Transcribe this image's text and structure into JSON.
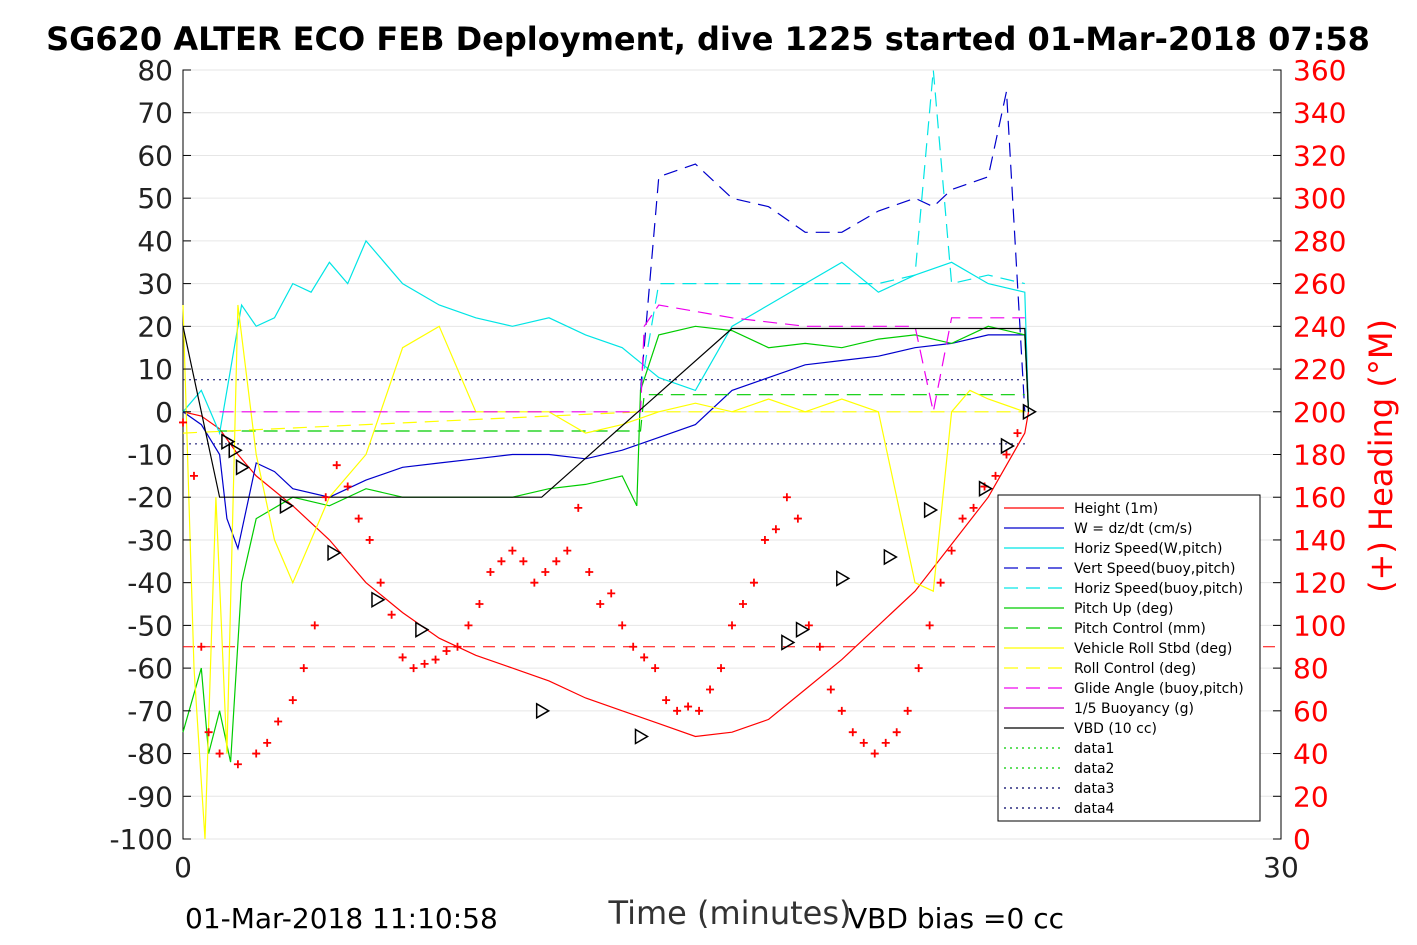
{
  "chart_data": {
    "type": "line",
    "title": "SG620 ALTER ECO FEB Deployment, dive 1225 started 01-Mar-2018 07:58",
    "xlabel": "Time (minutes)",
    "ylabel_right": "(+) Heading (°M)",
    "xlim": [
      0,
      30
    ],
    "ylim_left": [
      -100,
      80
    ],
    "ylim_right": [
      0,
      360
    ],
    "x_ticks": [
      "0",
      "30"
    ],
    "y_left_ticks": [
      "-100",
      "-90",
      "-80",
      "-70",
      "-60",
      "-50",
      "-40",
      "-30",
      "-20",
      "-10",
      "0",
      "10",
      "20",
      "30",
      "40",
      "50",
      "60",
      "70",
      "80"
    ],
    "y_right_ticks": [
      "0",
      "20",
      "40",
      "60",
      "80",
      "100",
      "120",
      "140",
      "160",
      "180",
      "200",
      "220",
      "240",
      "260",
      "280",
      "300",
      "320",
      "340",
      "360"
    ],
    "footer_left": "01-Mar-2018 11:10:58",
    "footer_right": "VBD bias =0 cc",
    "colors": {
      "height": "#ff0000",
      "w": "#0000cc",
      "horiz": "#00e5e5",
      "pitch": "#00cc00",
      "roll": "#ffff00",
      "glide": "#ee00ee",
      "buoy": "#cc00cc",
      "vbd": "#000000",
      "heading": "#ff0000",
      "right_axis": "#ff0000"
    },
    "legend_position": "lower-right",
    "legend": [
      {
        "label": "Height (1m)",
        "color": "#ff0000",
        "style": "solid"
      },
      {
        "label": "W = dz/dt (cm/s)",
        "color": "#0000cc",
        "style": "solid"
      },
      {
        "label": "Horiz Speed(W,pitch)",
        "color": "#00e5e5",
        "style": "solid"
      },
      {
        "label": "Vert Speed(buoy,pitch)",
        "color": "#0000cc",
        "style": "dashed"
      },
      {
        "label": "Horiz Speed(buoy,pitch)",
        "color": "#00e5e5",
        "style": "dashed"
      },
      {
        "label": "Pitch Up (deg)",
        "color": "#00cc00",
        "style": "solid"
      },
      {
        "label": "Pitch Control (mm)",
        "color": "#00cc00",
        "style": "dashed"
      },
      {
        "label": "Vehicle Roll Stbd (deg)",
        "color": "#ffff00",
        "style": "solid"
      },
      {
        "label": "Roll Control (deg)",
        "color": "#ffff00",
        "style": "dashed"
      },
      {
        "label": "Glide Angle (buoy,pitch)",
        "color": "#ee00ee",
        "style": "dashed"
      },
      {
        "label": "1/5 Buoyancy (g)",
        "color": "#cc00cc",
        "style": "solid"
      },
      {
        "label": "VBD (10 cc)",
        "color": "#000000",
        "style": "solid"
      },
      {
        "label": "data1",
        "color": "#00cc00",
        "style": "dotted"
      },
      {
        "label": "data2",
        "color": "#00cc00",
        "style": "dotted"
      },
      {
        "label": "data3",
        "color": "#000066",
        "style": "dotted"
      },
      {
        "label": "data4",
        "color": "#000066",
        "style": "dotted"
      }
    ],
    "series": [
      {
        "name": "Height (1m)",
        "x": [
          0,
          0.5,
          1,
          1.5,
          2,
          3,
          4,
          5,
          6,
          7,
          8,
          9,
          10,
          11,
          12,
          13,
          14,
          15,
          16,
          17,
          18,
          19,
          20,
          21,
          22,
          23,
          23.1
        ],
        "y": [
          0,
          -1,
          -4,
          -10,
          -15,
          -22,
          -30,
          -40,
          -47,
          -53,
          -57,
          -60,
          -63,
          -67,
          -70,
          -73,
          -76,
          -75,
          -72,
          -65,
          -58,
          -50,
          -42,
          -31,
          -20,
          -5,
          0
        ]
      },
      {
        "name": "W = dz/dt (cm/s)",
        "x": [
          0,
          0.5,
          1,
          1.2,
          1.5,
          1.8,
          2,
          2.5,
          3,
          4,
          5,
          6,
          7,
          8,
          9,
          10,
          11,
          12,
          13,
          14,
          15,
          16,
          17,
          18,
          19,
          20,
          21,
          22,
          23,
          23.1
        ],
        "y": [
          0,
          -3,
          -10,
          -25,
          -32,
          -20,
          -12,
          -14,
          -18,
          -20,
          -16,
          -13,
          -12,
          -11,
          -10,
          -10,
          -11,
          -9,
          -6,
          -3,
          5,
          8,
          11,
          12,
          13,
          15,
          16,
          18,
          18,
          0
        ]
      },
      {
        "name": "Horiz Speed(W,pitch)",
        "x": [
          0,
          0.5,
          1,
          1.3,
          1.6,
          2,
          2.5,
          3,
          3.5,
          4,
          4.5,
          5,
          5.5,
          6,
          7,
          8,
          9,
          10,
          11,
          12,
          13,
          14,
          15,
          16,
          17,
          18,
          19,
          20,
          21,
          22,
          23,
          23.1
        ],
        "y": [
          0,
          5,
          -5,
          10,
          25,
          20,
          22,
          30,
          28,
          35,
          30,
          40,
          35,
          30,
          25,
          22,
          20,
          22,
          18,
          15,
          8,
          5,
          20,
          25,
          30,
          35,
          28,
          32,
          35,
          30,
          28,
          0
        ]
      },
      {
        "name": "Vert Speed(buoy,pitch)",
        "x": [
          12.5,
          13,
          14,
          15,
          16,
          17,
          18,
          19,
          20,
          20.5,
          21,
          22,
          22.5,
          23
        ],
        "y": [
          5,
          55,
          58,
          50,
          48,
          42,
          42,
          47,
          50,
          48,
          52,
          55,
          75,
          0
        ]
      },
      {
        "name": "Horiz Speed(buoy,pitch)",
        "x": [
          12.5,
          13,
          15,
          17,
          19,
          20,
          20.5,
          21,
          22,
          23
        ],
        "y": [
          5,
          30,
          30,
          30,
          30,
          32,
          80,
          30,
          32,
          30
        ]
      },
      {
        "name": "Pitch Up (deg)",
        "x": [
          0,
          0.5,
          0.7,
          1,
          1.3,
          1.6,
          2,
          3,
          4,
          5,
          6,
          7,
          8,
          9,
          10,
          11,
          12,
          12.4,
          12.5,
          13,
          14,
          15,
          16,
          17,
          18,
          19,
          20,
          21,
          22,
          23,
          23.1
        ],
        "y": [
          -75,
          -60,
          -80,
          -70,
          -82,
          -40,
          -25,
          -20,
          -22,
          -18,
          -20,
          -20,
          -20,
          -20,
          -18,
          -17,
          -15,
          -22,
          5,
          18,
          20,
          19,
          15,
          16,
          15,
          17,
          18,
          16,
          20,
          18,
          0
        ]
      },
      {
        "name": "Pitch Control (mm)",
        "x": [
          1,
          12.5,
          12.6,
          23
        ],
        "y": [
          -4.5,
          -4.5,
          4,
          4
        ]
      },
      {
        "name": "Vehicle Roll Stbd (deg)",
        "x": [
          0,
          0.3,
          0.6,
          0.9,
          1.2,
          1.5,
          2,
          2.5,
          3,
          4,
          5,
          6,
          7,
          8,
          9,
          10,
          11,
          12,
          13,
          14,
          15,
          16,
          17,
          18,
          19,
          20,
          20.5,
          21,
          21.5,
          22,
          23
        ],
        "y": [
          25,
          -60,
          -100,
          -20,
          -80,
          25,
          -10,
          -30,
          -40,
          -20,
          -10,
          15,
          20,
          0,
          0,
          0,
          -5,
          -3,
          0,
          2,
          0,
          3,
          0,
          3,
          0,
          -40,
          -42,
          0,
          5,
          3,
          0
        ]
      },
      {
        "name": "Roll Control (deg)",
        "x": [
          0,
          12.5,
          23
        ],
        "y": [
          -5,
          0,
          0
        ]
      },
      {
        "name": "Glide Angle (buoy,pitch)",
        "x": [
          1,
          12.5,
          12.6,
          13,
          15,
          17,
          19,
          20,
          20.5,
          21,
          23
        ],
        "y": [
          0,
          0,
          20,
          25,
          22,
          20,
          20,
          20,
          0,
          22,
          22
        ]
      },
      {
        "name": "VBD (10 cc)",
        "x": [
          0,
          1,
          9.8,
          15,
          23,
          23.1
        ],
        "y": [
          20,
          -20,
          -20,
          19.5,
          19.5,
          0
        ]
      }
    ],
    "reference_lines": [
      {
        "label": "data3",
        "y": 7.5
      },
      {
        "label": "data4",
        "y": -7.5
      },
      {
        "label": "red dashed",
        "y": -55
      }
    ],
    "heading_points": {
      "axis": "right",
      "x": [
        0,
        0.3,
        0.5,
        0.7,
        1,
        1.5,
        2,
        2.3,
        2.6,
        3,
        3.3,
        3.6,
        3.9,
        4.2,
        4.5,
        4.8,
        5.1,
        5.4,
        5.7,
        6,
        6.3,
        6.6,
        6.9,
        7.2,
        7.5,
        7.8,
        8.1,
        8.4,
        8.7,
        9,
        9.3,
        9.6,
        9.9,
        10.2,
        10.5,
        10.8,
        11.1,
        11.4,
        11.7,
        12,
        12.3,
        12.6,
        12.9,
        13.2,
        13.5,
        13.8,
        14.1,
        14.4,
        14.7,
        15,
        15.3,
        15.6,
        15.9,
        16.2,
        16.5,
        16.8,
        17.1,
        17.4,
        17.7,
        18,
        18.3,
        18.6,
        18.9,
        19.2,
        19.5,
        19.8,
        20.1,
        20.4,
        20.7,
        21,
        21.3,
        21.6,
        21.9,
        22.2,
        22.5,
        22.8
      ],
      "y": [
        195,
        170,
        90,
        50,
        40,
        35,
        40,
        45,
        55,
        65,
        80,
        100,
        160,
        175,
        165,
        150,
        140,
        120,
        105,
        85,
        80,
        82,
        84,
        88,
        90,
        100,
        110,
        125,
        130,
        135,
        130,
        120,
        125,
        130,
        135,
        155,
        125,
        110,
        115,
        100,
        90,
        85,
        80,
        65,
        60,
        62,
        60,
        70,
        80,
        100,
        110,
        120,
        140,
        145,
        160,
        150,
        100,
        90,
        70,
        60,
        50,
        45,
        40,
        45,
        50,
        60,
        80,
        100,
        120,
        135,
        150,
        155,
        165,
        170,
        180,
        190
      ]
    },
    "markers_height": {
      "x": [
        1.2,
        1.4,
        1.6,
        2.8,
        4.1,
        5.3,
        6.5,
        9.8,
        12.5,
        16.5,
        16.9,
        18,
        19.3,
        20.4,
        21.9,
        22.5,
        23.1
      ],
      "y": [
        -7,
        -9,
        -13,
        -22,
        -33,
        -44,
        -51,
        -70,
        -76,
        -54,
        -51,
        -39,
        -34,
        -23,
        -18,
        -8,
        0
      ]
    }
  }
}
